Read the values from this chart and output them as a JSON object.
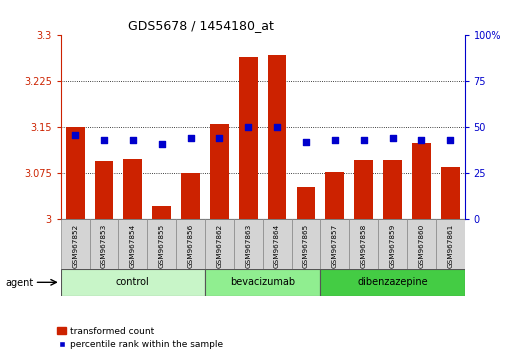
{
  "title": "GDS5678 / 1454180_at",
  "samples": [
    "GSM967852",
    "GSM967853",
    "GSM967854",
    "GSM967855",
    "GSM967856",
    "GSM967862",
    "GSM967863",
    "GSM967864",
    "GSM967865",
    "GSM967857",
    "GSM967858",
    "GSM967859",
    "GSM967860",
    "GSM967861"
  ],
  "bar_values": [
    3.15,
    3.095,
    3.098,
    3.022,
    3.076,
    3.155,
    3.265,
    3.268,
    3.053,
    3.077,
    3.097,
    3.097,
    3.125,
    3.085
  ],
  "dot_values": [
    46,
    43,
    43,
    41,
    44,
    44,
    50,
    50,
    42,
    43,
    43,
    44,
    43,
    43
  ],
  "groups": [
    {
      "label": "control",
      "start": 0,
      "end": 5,
      "color": "#c8f5c8"
    },
    {
      "label": "bevacizumab",
      "start": 5,
      "end": 9,
      "color": "#90ee90"
    },
    {
      "label": "dibenzazepine",
      "start": 9,
      "end": 14,
      "color": "#44cc44"
    }
  ],
  "ymin": 3.0,
  "ymax": 3.3,
  "yticks": [
    3.0,
    3.075,
    3.15,
    3.225,
    3.3
  ],
  "ytick_labels": [
    "3",
    "3.075",
    "3.15",
    "3.225",
    "3.3"
  ],
  "y2min": 0,
  "y2max": 100,
  "y2ticks": [
    0,
    25,
    50,
    75,
    100
  ],
  "y2tick_labels": [
    "0",
    "25",
    "50",
    "75",
    "100%"
  ],
  "bar_color": "#cc2200",
  "dot_color": "#0000cc",
  "agent_label": "agent",
  "legend_bar": "transformed count",
  "legend_dot": "percentile rank within the sample",
  "left_axis_color": "#cc2200",
  "right_axis_color": "#0000cc"
}
